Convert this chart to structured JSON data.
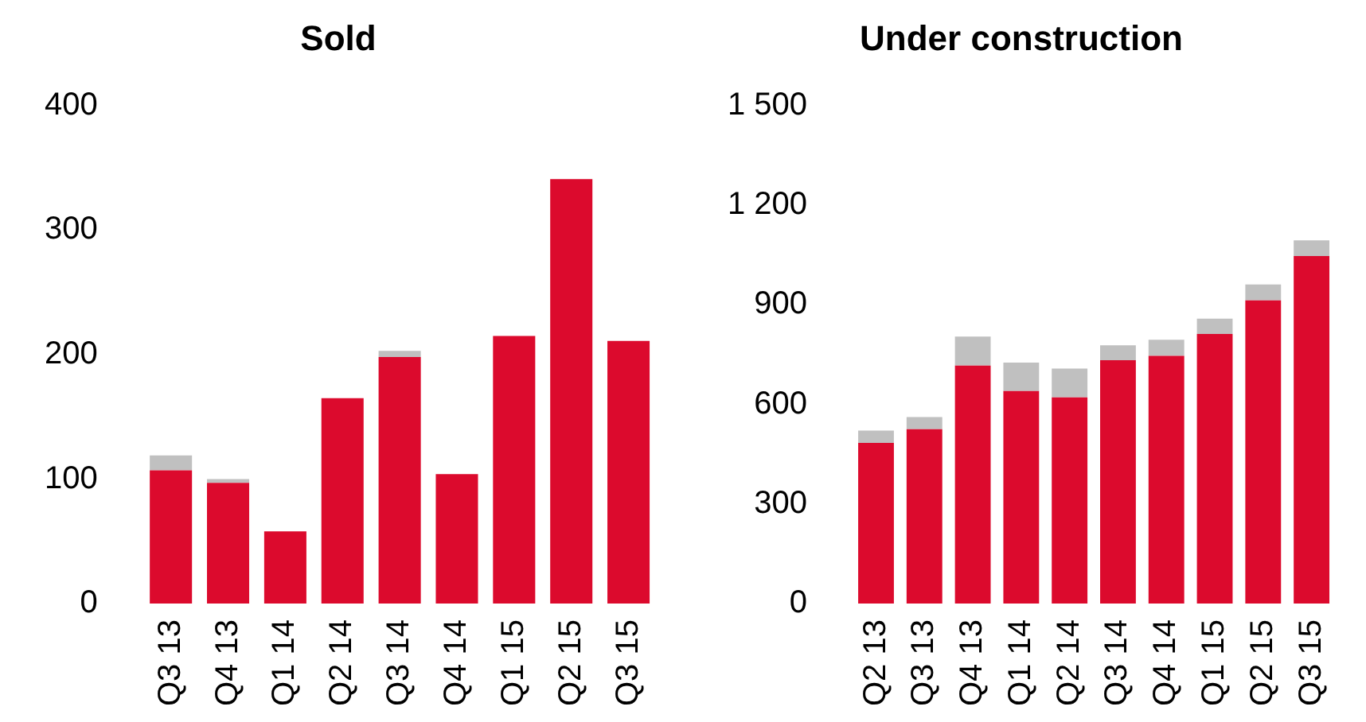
{
  "chart_data": [
    {
      "type": "bar",
      "title": "Sold",
      "stacked": true,
      "categories": [
        "Q3 13",
        "Q4 13",
        "Q1 14",
        "Q2 14",
        "Q3 14",
        "Q4 14",
        "Q1 15",
        "Q2 15",
        "Q3 15"
      ],
      "series": [
        {
          "color": "#dc0a2d",
          "values": [
            107,
            97,
            58,
            165,
            198,
            104,
            215,
            341,
            211
          ]
        },
        {
          "color": "#c0c0c0",
          "values": [
            12,
            3,
            0,
            0,
            5,
            0,
            0,
            0,
            0
          ]
        }
      ],
      "ylim": [
        0,
        400
      ],
      "yticks": [
        0,
        100,
        200,
        300,
        400
      ],
      "grid": false,
      "legend": false
    },
    {
      "type": "bar",
      "title": "Under construction",
      "stacked": true,
      "categories": [
        "Q2 13",
        "Q3 13",
        "Q4 13",
        "Q1 14",
        "Q2 14",
        "Q3 14",
        "Q4 14",
        "Q1 15",
        "Q2 15",
        "Q3 15"
      ],
      "series": [
        {
          "color": "#dc0a2d",
          "values": [
            484,
            525,
            717,
            640,
            621,
            733,
            746,
            812,
            913,
            1047
          ]
        },
        {
          "color": "#c0c0c0",
          "values": [
            37,
            37,
            87,
            86,
            87,
            45,
            49,
            46,
            48,
            47
          ]
        }
      ],
      "ylim": [
        0,
        1500
      ],
      "yticks": [
        0,
        300,
        600,
        900,
        {
          "value": 1200,
          "label": "1 200"
        },
        {
          "value": 1500,
          "label": "1 500"
        }
      ],
      "grid": false,
      "legend": false
    }
  ]
}
